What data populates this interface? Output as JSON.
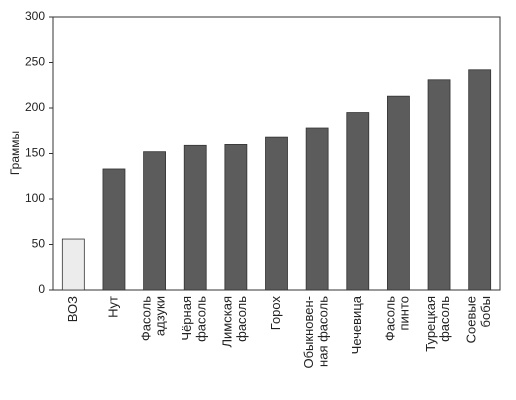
{
  "chart_data": {
    "type": "bar",
    "y_label": "Граммы",
    "categories": [
      "ВОЗ",
      "Нут",
      "Фасоль\nадзуки",
      "Чёрная\nфасоль",
      "Лимская\nфасоль",
      "Горох",
      "Обыкновен-\nная фасоль",
      "Чечевица",
      "Фасоль\nпинто",
      "Турецкая\nфасоль",
      "Соевые\nбобы"
    ],
    "values": [
      56,
      133,
      152,
      159,
      160,
      168,
      178,
      195,
      213,
      231,
      242
    ],
    "colors": [
      "#ececec",
      "#5c5c5c",
      "#5c5c5c",
      "#5c5c5c",
      "#5c5c5c",
      "#5c5c5c",
      "#5c5c5c",
      "#5c5c5c",
      "#5c5c5c",
      "#5c5c5c",
      "#5c5c5c"
    ],
    "ylim": [
      0,
      300
    ],
    "yticks": [
      0,
      50,
      100,
      150,
      200,
      250,
      300
    ],
    "grid": false
  }
}
